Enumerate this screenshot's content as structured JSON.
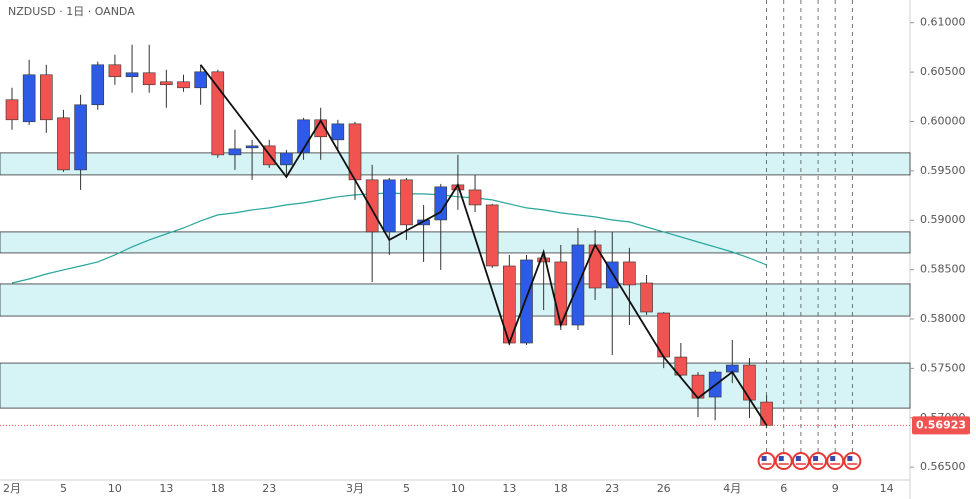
{
  "chart_data": {
    "type": "candlestick",
    "title": "NZDUSD · 1日 · OANDA",
    "categories": [
      "2月",
      null,
      null,
      "5",
      null,
      null,
      "10",
      null,
      null,
      "13",
      null,
      null,
      "18",
      null,
      null,
      "23",
      null,
      null,
      null,
      null,
      "3月",
      null,
      null,
      "5",
      null,
      null,
      "10",
      null,
      null,
      "13",
      null,
      null,
      "18",
      null,
      null,
      "23",
      null,
      null,
      "26",
      null,
      null,
      null,
      "4月",
      null,
      null,
      "6",
      null,
      null,
      "9",
      null,
      null,
      "14",
      null
    ],
    "open": [
      0.6022,
      0.59997,
      0.60473,
      0.60037,
      0.5951,
      0.60169,
      0.60574,
      0.60453,
      0.60493,
      0.60402,
      0.60402,
      0.60341,
      0.60503,
      0.59662,
      0.59733,
      0.59753,
      0.59561,
      0.59682,
      0.60017,
      0.59814,
      0.59976,
      0.59409,
      0.58882,
      0.59409,
      0.58953,
      0.59003,
      0.59358,
      0.59307,
      0.59155,
      0.58537,
      0.57757,
      0.58618,
      0.58578,
      0.57939,
      0.5875,
      0.58314,
      0.58578,
      0.58365,
      0.58061,
      0.57615,
      0.57432,
      0.5721,
      0.57463,
      0.57534,
      0.57159,
      null,
      null,
      null,
      null,
      null,
      null,
      null,
      null
    ],
    "close": [
      0.60017,
      0.60473,
      0.60017,
      0.5951,
      0.60169,
      0.60574,
      0.60453,
      0.60493,
      0.60372,
      0.60372,
      0.60341,
      0.60503,
      0.59662,
      0.59723,
      0.59753,
      0.59561,
      0.59682,
      0.60017,
      0.59845,
      0.59976,
      0.59409,
      0.58882,
      0.59409,
      0.58953,
      0.59003,
      0.59338,
      0.59307,
      0.59155,
      0.58537,
      0.57757,
      0.58598,
      0.58578,
      0.57939,
      0.5875,
      0.58314,
      0.58578,
      0.58345,
      0.58071,
      0.57615,
      0.57432,
      0.57199,
      0.57463,
      0.57534,
      0.57179,
      0.56923,
      null,
      null,
      null,
      null,
      null,
      null,
      null,
      null
    ],
    "high": [
      0.60341,
      0.60625,
      0.60574,
      0.60118,
      0.6027,
      0.60605,
      0.60676,
      0.60777,
      0.60777,
      0.60524,
      0.60473,
      0.60574,
      0.60524,
      0.59916,
      0.59814,
      0.59814,
      0.59713,
      0.60037,
      0.60139,
      0.60017,
      0.59997,
      0.59561,
      0.59429,
      0.59429,
      0.59155,
      0.59368,
      0.59662,
      0.59459,
      0.59166,
      0.58649,
      0.58649,
      0.58679,
      0.5875,
      0.58922,
      0.58902,
      0.58882,
      0.5872,
      0.58446,
      0.58071,
      0.57757,
      0.57463,
      0.57483,
      0.57787,
      0.57605,
      0.5723,
      null,
      null,
      null,
      null,
      null,
      null,
      null,
      null
    ],
    "low": [
      0.59916,
      0.59966,
      0.59885,
      0.5949,
      0.59307,
      0.60118,
      0.60372,
      0.60291,
      0.60291,
      0.60139,
      0.60301,
      0.60169,
      0.59632,
      0.5951,
      0.59409,
      0.5953,
      0.59459,
      0.59612,
      0.59612,
      0.59713,
      0.59206,
      0.58375,
      0.58649,
      0.58801,
      0.58578,
      0.58497,
      0.59105,
      0.59084,
      0.58517,
      0.57737,
      0.57737,
      0.58091,
      0.57889,
      0.57889,
      0.58193,
      0.57635,
      0.57939,
      0.58041,
      0.57503,
      0.57402,
      0.57007,
      0.56976,
      0.57351,
      0.56997,
      0.56895,
      null,
      null,
      null,
      null,
      null,
      null,
      null,
      null
    ],
    "up_color": "#2e5be6",
    "down_color": "#f05350",
    "ma": {
      "color": "#26a69a",
      "values": [
        0.58365,
        0.58405,
        0.58456,
        0.58497,
        0.58537,
        0.58578,
        0.58649,
        0.5873,
        0.58801,
        0.58862,
        0.58922,
        0.58993,
        0.59054,
        0.59074,
        0.59105,
        0.59125,
        0.59155,
        0.59176,
        0.59206,
        0.59237,
        0.59257,
        0.59267,
        0.59277,
        0.59267,
        0.59267,
        0.59257,
        0.59237,
        0.59226,
        0.59206,
        0.59166,
        0.59125,
        0.59105,
        0.59074,
        0.59054,
        0.59034,
        0.59003,
        0.58983,
        0.58932,
        0.58882,
        0.58831,
        0.5878,
        0.5873,
        0.58679,
        0.58618,
        0.58547,
        null,
        null,
        null,
        null,
        null,
        null,
        null,
        null
      ]
    },
    "trendline": {
      "color": "#111111",
      "x": [
        11,
        16,
        18,
        20,
        22,
        25,
        26,
        29,
        31,
        32,
        34,
        38,
        40,
        42,
        44
      ],
      "values": [
        0.60574,
        0.59439,
        0.60007,
        0.59409,
        0.58801,
        0.59084,
        0.59358,
        0.57757,
        0.58679,
        0.57939,
        0.5875,
        0.57615,
        0.57199,
        0.57463,
        0.56923
      ]
    },
    "zones": [
      {
        "top": 0.59682,
        "bottom": 0.59459
      },
      {
        "top": 0.58882,
        "bottom": 0.58669
      },
      {
        "top": 0.58355,
        "bottom": 0.5803
      },
      {
        "top": 0.57554,
        "bottom": 0.57098
      }
    ],
    "zone_color": "#d6f3f6",
    "event_lines": [
      44,
      45,
      46,
      47,
      48,
      49
    ],
    "last_price": {
      "value": 0.56923,
      "label": "0.56923"
    },
    "ylim": [
      0.5637,
      0.6123
    ],
    "yticks": [
      {
        "value": 0.565,
        "label": "0.56500"
      },
      {
        "value": 0.57,
        "label": "0.57000"
      },
      {
        "value": 0.575,
        "label": "0.57500"
      },
      {
        "value": 0.58,
        "label": "0.58000"
      },
      {
        "value": 0.585,
        "label": "0.58500"
      },
      {
        "value": 0.59,
        "label": "0.59000"
      },
      {
        "value": 0.595,
        "label": "0.59500"
      },
      {
        "value": 0.6,
        "label": "0.60000"
      },
      {
        "value": 0.605,
        "label": "0.60500"
      },
      {
        "value": 0.61,
        "label": "0.61000"
      }
    ]
  }
}
